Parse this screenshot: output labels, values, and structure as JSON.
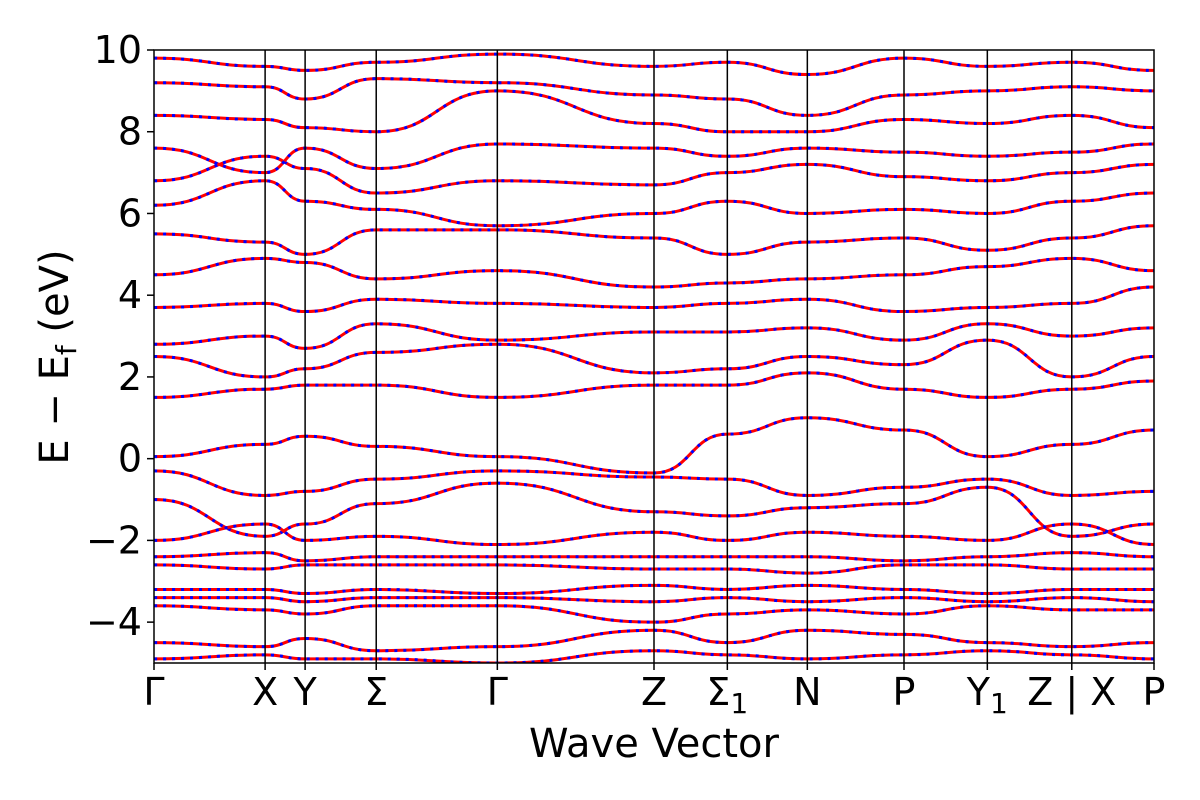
{
  "chart_data": {
    "type": "line",
    "title": "",
    "xlabel": "Wave Vector",
    "ylabel": "E − E_f (eV)",
    "ylabel_parts": {
      "main": "E − E",
      "sub": "f",
      "unit": " (eV)"
    },
    "ylim": [
      -5,
      10
    ],
    "yticks": [
      "10",
      "8",
      "6",
      "4",
      "2",
      "0",
      "−2",
      "−4"
    ],
    "ytick_values": [
      10,
      8,
      6,
      4,
      2,
      0,
      -2,
      -4
    ],
    "grid": false,
    "legend": "none",
    "colors": {
      "band_solid": "#ff0000",
      "band_dash": "#0000ff",
      "frame": "#000000"
    },
    "kpath": [
      {
        "label": "Γ",
        "sub": "",
        "pos": 0.0
      },
      {
        "label": "X",
        "sub": "",
        "pos": 1.0
      },
      {
        "label": "Y",
        "sub": "",
        "pos": 1.36
      },
      {
        "label": "Σ",
        "sub": "",
        "pos": 2.0
      },
      {
        "label": "Γ",
        "sub": "",
        "pos": 3.09
      },
      {
        "label": "Z",
        "sub": "",
        "pos": 4.5
      },
      {
        "label": "Σ",
        "sub": "1",
        "pos": 5.16
      },
      {
        "label": "N",
        "sub": "",
        "pos": 5.88
      },
      {
        "label": "P",
        "sub": "",
        "pos": 6.75
      },
      {
        "label": "Y",
        "sub": "1",
        "pos": 7.5
      },
      {
        "label": "Z | X",
        "sub": "",
        "pos": 8.26
      },
      {
        "label": "P",
        "sub": "",
        "pos": 9.0
      }
    ],
    "series": [
      {
        "x": [
          0,
          1,
          1.36,
          2,
          3.09,
          4.5,
          5.16,
          5.88,
          6.75,
          7.5,
          8.26,
          9.0
        ],
        "values": [
          0.05,
          0.35,
          0.55,
          0.3,
          0.05,
          -0.35,
          0.6,
          1.0,
          0.7,
          0.05,
          0.35,
          0.7
        ]
      },
      {
        "x": [
          0,
          1,
          1.36,
          2,
          3.09,
          4.5,
          5.16,
          5.88,
          6.75,
          7.5,
          8.26,
          9.0
        ],
        "values": [
          -0.3,
          -0.9,
          -0.8,
          -0.5,
          -0.3,
          -0.45,
          -0.5,
          -0.9,
          -0.7,
          -0.5,
          -0.9,
          -0.8
        ]
      },
      {
        "x": [
          0,
          1,
          1.36,
          2,
          3.09,
          4.5,
          5.16,
          5.88,
          6.75,
          7.5,
          8.26,
          9.0
        ],
        "values": [
          1.5,
          1.7,
          1.8,
          1.8,
          1.5,
          1.8,
          1.8,
          2.1,
          1.7,
          1.5,
          1.7,
          1.9
        ]
      },
      {
        "x": [
          0,
          1,
          1.36,
          2,
          3.09,
          4.5,
          5.16,
          5.88,
          6.75,
          7.5,
          8.26,
          9.0
        ],
        "values": [
          2.5,
          2.0,
          2.2,
          2.6,
          2.8,
          2.1,
          2.2,
          2.5,
          2.3,
          2.9,
          2.0,
          2.5
        ]
      },
      {
        "x": [
          0,
          1,
          1.36,
          2,
          3.09,
          4.5,
          5.16,
          5.88,
          6.75,
          7.5,
          8.26,
          9.0
        ],
        "values": [
          2.8,
          3.0,
          2.7,
          3.3,
          2.9,
          3.1,
          3.1,
          3.2,
          2.9,
          3.3,
          3.0,
          3.2
        ]
      },
      {
        "x": [
          0,
          1,
          1.36,
          2,
          3.09,
          4.5,
          5.16,
          5.88,
          6.75,
          7.5,
          8.26,
          9.0
        ],
        "values": [
          3.7,
          3.8,
          3.6,
          3.9,
          3.8,
          3.7,
          3.8,
          3.9,
          3.6,
          3.7,
          3.8,
          4.2
        ]
      },
      {
        "x": [
          0,
          1,
          1.36,
          2,
          3.09,
          4.5,
          5.16,
          5.88,
          6.75,
          7.5,
          8.26,
          9.0
        ],
        "values": [
          4.5,
          4.9,
          4.8,
          4.4,
          4.6,
          4.2,
          4.3,
          4.4,
          4.5,
          4.7,
          4.9,
          4.6
        ]
      },
      {
        "x": [
          0,
          1,
          1.36,
          2,
          3.09,
          4.5,
          5.16,
          5.88,
          6.75,
          7.5,
          8.26,
          9.0
        ],
        "values": [
          5.5,
          5.3,
          5.0,
          5.6,
          5.6,
          5.4,
          5.0,
          5.3,
          5.4,
          5.1,
          5.4,
          5.7
        ]
      },
      {
        "x": [
          0,
          1,
          1.36,
          2,
          3.09,
          4.5,
          5.16,
          5.88,
          6.75,
          7.5,
          8.26,
          9.0
        ],
        "values": [
          6.2,
          6.8,
          6.3,
          6.1,
          5.7,
          6.0,
          6.3,
          6.0,
          6.1,
          6.0,
          6.3,
          6.5
        ]
      },
      {
        "x": [
          0,
          1,
          1.36,
          2,
          3.09,
          4.5,
          5.16,
          5.88,
          6.75,
          7.5,
          8.26,
          9.0
        ],
        "values": [
          6.8,
          7.4,
          7.1,
          6.5,
          6.8,
          6.7,
          7.0,
          7.2,
          6.9,
          6.8,
          7.0,
          7.2
        ]
      },
      {
        "x": [
          0,
          1,
          1.36,
          2,
          3.09,
          4.5,
          5.16,
          5.88,
          6.75,
          7.5,
          8.26,
          9.0
        ],
        "values": [
          7.6,
          7.0,
          7.6,
          7.1,
          7.7,
          7.6,
          7.4,
          7.6,
          7.5,
          7.4,
          7.5,
          7.7
        ]
      },
      {
        "x": [
          0,
          1,
          1.36,
          2,
          3.09,
          4.5,
          5.16,
          5.88,
          6.75,
          7.5,
          8.26,
          9.0
        ],
        "values": [
          8.4,
          8.3,
          8.1,
          8.0,
          9.0,
          8.2,
          8.0,
          8.0,
          8.3,
          8.2,
          8.4,
          8.1
        ]
      },
      {
        "x": [
          0,
          1,
          1.36,
          2,
          3.09,
          4.5,
          5.16,
          5.88,
          6.75,
          7.5,
          8.26,
          9.0
        ],
        "values": [
          9.2,
          9.1,
          8.8,
          9.3,
          9.2,
          8.9,
          8.8,
          8.4,
          8.9,
          9.0,
          9.1,
          9.0
        ]
      },
      {
        "x": [
          0,
          1,
          1.36,
          2,
          3.09,
          4.5,
          5.16,
          5.88,
          6.75,
          7.5,
          8.26,
          9.0
        ],
        "values": [
          9.8,
          9.6,
          9.5,
          9.7,
          9.9,
          9.6,
          9.7,
          9.4,
          9.8,
          9.6,
          9.7,
          9.5
        ]
      },
      {
        "x": [
          0,
          1,
          1.36,
          2,
          3.09,
          4.5,
          5.16,
          5.88,
          6.75,
          7.5,
          8.26,
          9.0
        ],
        "values": [
          -1.0,
          -1.9,
          -1.6,
          -1.1,
          -0.6,
          -1.3,
          -1.4,
          -1.2,
          -1.1,
          -0.7,
          -1.9,
          -1.6
        ]
      },
      {
        "x": [
          0,
          1,
          1.36,
          2,
          3.09,
          4.5,
          5.16,
          5.88,
          6.75,
          7.5,
          8.26,
          9.0
        ],
        "values": [
          -2.0,
          -1.6,
          -2.0,
          -1.9,
          -2.1,
          -1.8,
          -2.0,
          -1.8,
          -1.9,
          -2.0,
          -1.6,
          -2.1
        ]
      },
      {
        "x": [
          0,
          1,
          1.36,
          2,
          3.09,
          4.5,
          5.16,
          5.88,
          6.75,
          7.5,
          8.26,
          9.0
        ],
        "values": [
          -2.4,
          -2.3,
          -2.5,
          -2.4,
          -2.4,
          -2.4,
          -2.4,
          -2.4,
          -2.5,
          -2.4,
          -2.3,
          -2.4
        ]
      },
      {
        "x": [
          0,
          1,
          1.36,
          2,
          3.09,
          4.5,
          5.16,
          5.88,
          6.75,
          7.5,
          8.26,
          9.0
        ],
        "values": [
          -2.6,
          -2.7,
          -2.6,
          -2.6,
          -2.6,
          -2.7,
          -2.7,
          -2.8,
          -2.6,
          -2.6,
          -2.7,
          -2.7
        ]
      },
      {
        "x": [
          0,
          1,
          1.36,
          2,
          3.09,
          4.5,
          5.16,
          5.88,
          6.75,
          7.5,
          8.26,
          9.0
        ],
        "values": [
          -3.2,
          -3.2,
          -3.3,
          -3.2,
          -3.3,
          -3.1,
          -3.2,
          -3.1,
          -3.2,
          -3.3,
          -3.2,
          -3.2
        ]
      },
      {
        "x": [
          0,
          1,
          1.36,
          2,
          3.09,
          4.5,
          5.16,
          5.88,
          6.75,
          7.5,
          8.26,
          9.0
        ],
        "values": [
          -3.4,
          -3.4,
          -3.5,
          -3.4,
          -3.4,
          -3.5,
          -3.4,
          -3.5,
          -3.4,
          -3.5,
          -3.4,
          -3.5
        ]
      },
      {
        "x": [
          0,
          1,
          1.36,
          2,
          3.09,
          4.5,
          5.16,
          5.88,
          6.75,
          7.5,
          8.26,
          9.0
        ],
        "values": [
          -3.6,
          -3.7,
          -3.8,
          -3.6,
          -3.6,
          -4.0,
          -3.8,
          -3.7,
          -3.8,
          -3.6,
          -3.7,
          -3.7
        ]
      },
      {
        "x": [
          0,
          1,
          1.36,
          2,
          3.09,
          4.5,
          5.16,
          5.88,
          6.75,
          7.5,
          8.26,
          9.0
        ],
        "values": [
          -4.5,
          -4.6,
          -4.4,
          -4.7,
          -4.6,
          -4.2,
          -4.5,
          -4.2,
          -4.3,
          -4.5,
          -4.6,
          -4.5
        ]
      },
      {
        "x": [
          0,
          1,
          1.36,
          2,
          3.09,
          4.5,
          5.16,
          5.88,
          6.75,
          7.5,
          8.26,
          9.0
        ],
        "values": [
          -4.9,
          -4.8,
          -4.9,
          -4.9,
          -5.0,
          -4.7,
          -4.8,
          -4.9,
          -4.8,
          -4.7,
          -4.8,
          -4.9
        ]
      }
    ]
  }
}
